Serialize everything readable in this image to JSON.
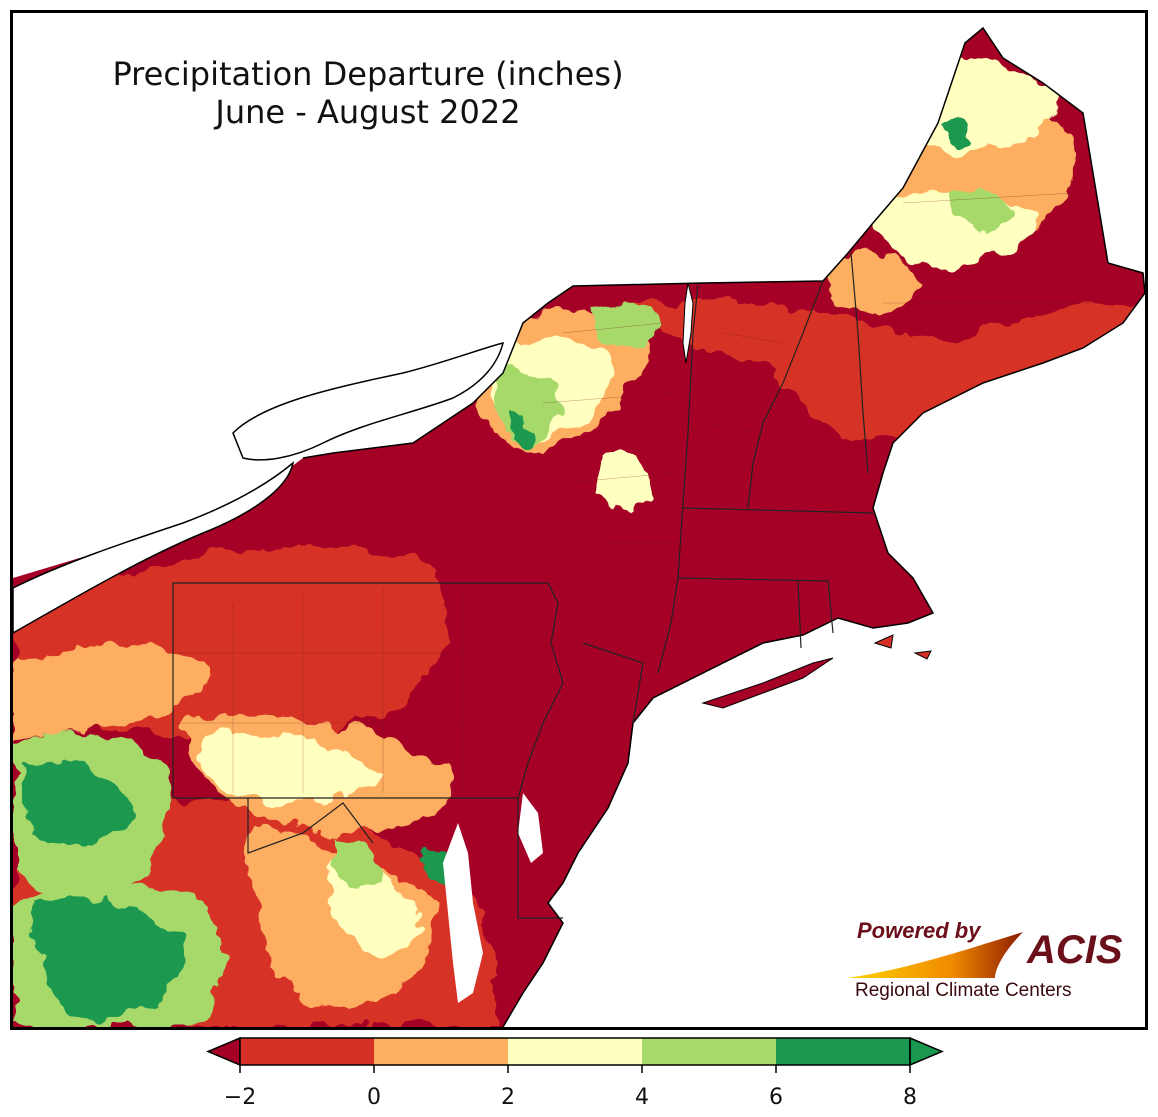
{
  "title": {
    "line1": "Precipitation Departure (inches)",
    "line2": "June - August 2022"
  },
  "logo": {
    "powered": "Powered by",
    "brand": "ACIS",
    "org": "Regional Climate Centers"
  },
  "colors": {
    "very_dry": "#a50026",
    "dry": "#d73027",
    "slightly_dry": "#fdae61",
    "near_normal": "#ffffbf",
    "wet": "#a6d96a",
    "very_wet": "#1a9850",
    "water": "#ffffff"
  },
  "legend": {
    "ticks": [
      "−2",
      "0",
      "2",
      "4",
      "6",
      "8"
    ],
    "bins": [
      {
        "from": -2,
        "to": 0,
        "color": "#d73027"
      },
      {
        "from": 0,
        "to": 2,
        "color": "#fdae61"
      },
      {
        "from": 2,
        "to": 4,
        "color": "#ffffbf"
      },
      {
        "from": 4,
        "to": 6,
        "color": "#a6d96a"
      },
      {
        "from": 6,
        "to": 8,
        "color": "#1a9850"
      }
    ],
    "under_color": "#a50026",
    "over_color": "#1a9850"
  }
}
